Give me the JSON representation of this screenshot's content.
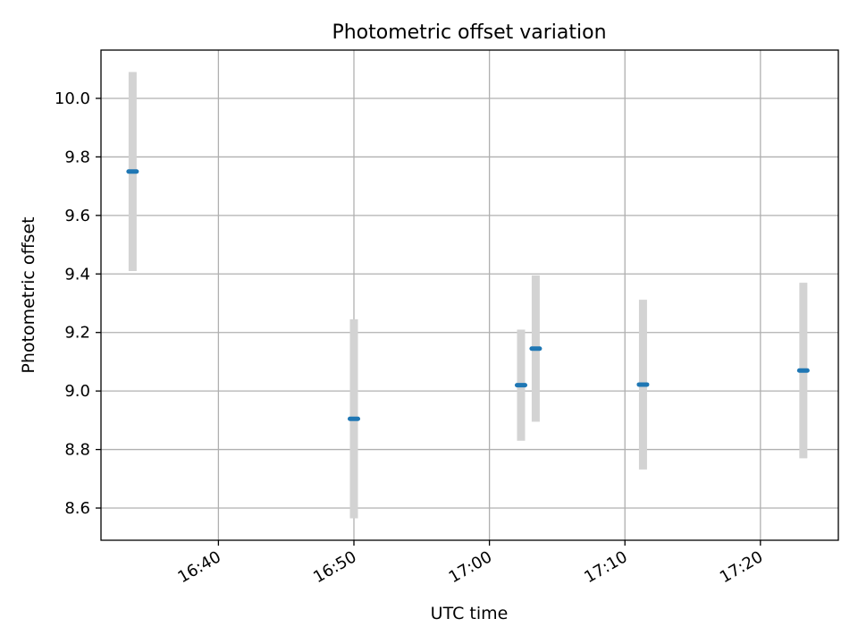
{
  "chart_data": {
    "type": "scatter",
    "title": "Photometric offset variation",
    "xlabel": "UTC time",
    "ylabel": "Photometric offset",
    "x_ticks": [
      "16:40",
      "16:50",
      "17:00",
      "17:10",
      "17:20"
    ],
    "y_ticks": [
      "8.6",
      "8.8",
      "9.0",
      "9.2",
      "9.4",
      "9.6",
      "9.8",
      "10.0"
    ],
    "xlim": [
      "16:31:20",
      "17:25:45"
    ],
    "ylim": [
      8.49,
      10.165
    ],
    "grid": true,
    "points": [
      {
        "x": "16:33:40",
        "y": 9.75,
        "yerr": 0.34
      },
      {
        "x": "16:50:00",
        "y": 8.905,
        "yerr": 0.34
      },
      {
        "x": "17:02:20",
        "y": 9.02,
        "yerr": 0.19
      },
      {
        "x": "17:03:25",
        "y": 9.145,
        "yerr": 0.25
      },
      {
        "x": "17:11:20",
        "y": 9.022,
        "yerr": 0.29
      },
      {
        "x": "17:23:10",
        "y": 9.07,
        "yerr": 0.3
      }
    ],
    "colors": {
      "marker": "#1f77b4",
      "errorbar": "#d3d3d3",
      "grid": "#b0b0b0"
    }
  }
}
